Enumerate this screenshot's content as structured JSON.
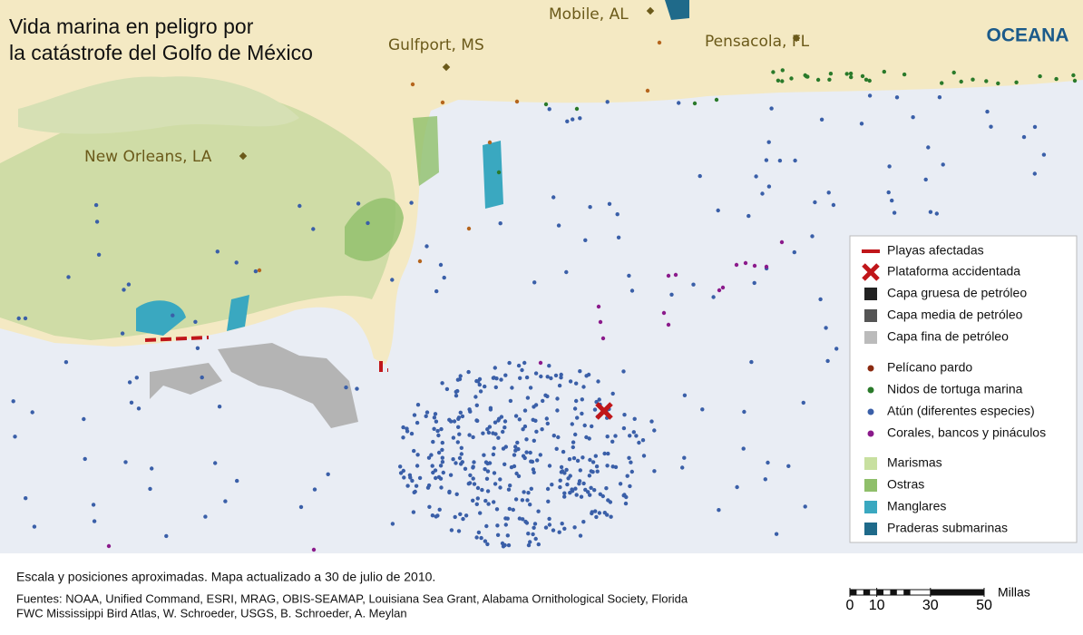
{
  "title": [
    "Vida marina en peligro por",
    "la catástrofe del Golfo de México"
  ],
  "logo": "OCEANA",
  "cities": [
    "Mobile, AL",
    "Gulfport, MS",
    "Pensacola, FL",
    "New Orleans, LA"
  ],
  "legend": {
    "items": [
      "Playas afectadas",
      "Plataforma accidentada",
      "Capa gruesa de petróleo",
      "Capa media de petróleo",
      "Capa fina de petróleo",
      "Pelícano pardo",
      "Nidos de tortuga marina",
      "Atún (diferentes especies)",
      "Corales, bancos y pináculos",
      "Marismas",
      "Ostras",
      "Manglares",
      "Praderas submarinas"
    ]
  },
  "footer": {
    "note": "Escala y posiciones aproximadas. Mapa actualizado a 30 de julio de 2010.",
    "sources": [
      "Fuentes: NOAA, Unified Command, ESRI, MRAG, OBIS-SEAMAP, Louisiana Sea Grant, Alabama Ornithological Society, Florida",
      "FWC Mississippi Bird Atlas, W. Schroeder, USGS, B. Schroeder, A. Meylan"
    ]
  },
  "scale": {
    "ticks": [
      0,
      10,
      30,
      50
    ],
    "unit": "Millas"
  }
}
